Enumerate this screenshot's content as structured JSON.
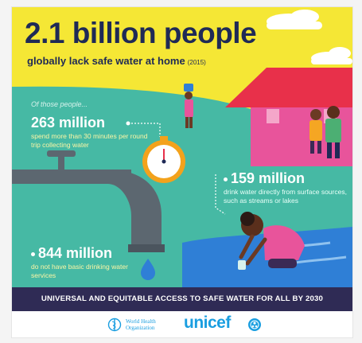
{
  "header": {
    "headline": "2.1 billion people",
    "subhead": "globally lack safe water at home",
    "year": "(2015)"
  },
  "intro": "Of those people...",
  "stats": [
    {
      "value": "263 million",
      "text": "spend more than 30 minutes per round trip collecting water"
    },
    {
      "value": "159 million",
      "text": "drink water directly from surface sources, such as streams or lakes"
    },
    {
      "value": "844 million",
      "text": "do not have basic drinking water services"
    }
  ],
  "banner": "UNIVERSAL AND EQUITABLE ACCESS TO SAFE WATER FOR ALL BY 2030",
  "logos": {
    "who": "World Health Organization",
    "who_line1": "World Health",
    "who_line2": "Organization",
    "unicef": "unicef"
  },
  "colors": {
    "sky_yellow": "#f5e735",
    "teal": "#46b9a4",
    "navy": "#2f2b55",
    "headline": "#1f2a56",
    "roof_red": "#e8304a",
    "house_pink": "#e8549b",
    "faucet_gray": "#5c6770",
    "water_blue": "#2f7fd6",
    "logo_blue": "#1a9ee0"
  },
  "icons": [
    "faucet-icon",
    "stopwatch-icon",
    "water-drop-icon",
    "house-icon",
    "who-emblem-icon",
    "unicef-emblem-icon"
  ]
}
